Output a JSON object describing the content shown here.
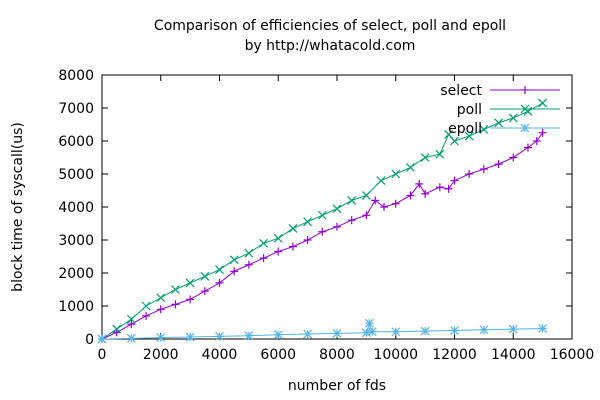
{
  "chart_data": {
    "type": "line",
    "title": "Comparison of efficiencies of select, poll and epoll",
    "subtitle": "by http://whatacold.com",
    "xlabel": "number of fds",
    "ylabel": "block time of syscall(us)",
    "xlim": [
      0,
      16000
    ],
    "ylim": [
      0,
      8000
    ],
    "xticks": [
      "0",
      "2000",
      "4000",
      "6000",
      "8000",
      "10000",
      "12000",
      "14000",
      "16000"
    ],
    "yticks": [
      "0",
      "1000",
      "2000",
      "3000",
      "4000",
      "5000",
      "6000",
      "7000",
      "8000"
    ],
    "grid": false,
    "legend_position": "top-right",
    "series": [
      {
        "name": "select",
        "color": "#9400d3",
        "marker": "plus",
        "x": [
          0,
          500,
          1000,
          1500,
          2000,
          2500,
          3000,
          3500,
          4000,
          4500,
          5000,
          5500,
          6000,
          6500,
          7000,
          7500,
          8000,
          8500,
          9000,
          9300,
          9600,
          10000,
          10500,
          10800,
          11000,
          11500,
          11800,
          12000,
          12500,
          13000,
          13500,
          14000,
          14500,
          14800,
          15000
        ],
        "y": [
          0,
          200,
          450,
          700,
          900,
          1050,
          1200,
          1450,
          1700,
          2050,
          2250,
          2450,
          2650,
          2800,
          3000,
          3250,
          3400,
          3600,
          3750,
          4200,
          4000,
          4100,
          4350,
          4700,
          4400,
          4600,
          4550,
          4800,
          5000,
          5150,
          5300,
          5500,
          5800,
          6000,
          6250
        ]
      },
      {
        "name": "poll",
        "color": "#009e73",
        "marker": "cross",
        "x": [
          0,
          500,
          1000,
          1500,
          2000,
          2500,
          3000,
          3500,
          4000,
          4500,
          5000,
          5500,
          6000,
          6500,
          7000,
          7500,
          8000,
          8500,
          9000,
          9500,
          10000,
          10500,
          11000,
          11500,
          11800,
          12000,
          12500,
          13000,
          13500,
          14000,
          14500,
          15000
        ],
        "y": [
          0,
          300,
          600,
          1000,
          1250,
          1500,
          1700,
          1900,
          2100,
          2400,
          2600,
          2900,
          3050,
          3350,
          3550,
          3750,
          3950,
          4200,
          4350,
          4800,
          5000,
          5200,
          5500,
          5600,
          6200,
          6000,
          6150,
          6350,
          6550,
          6700,
          6900,
          7150
        ]
      },
      {
        "name": "epoll",
        "color": "#56b4e9",
        "marker": "star",
        "x": [
          0,
          1000,
          2000,
          3000,
          4000,
          5000,
          6000,
          7000,
          8000,
          9000,
          9100,
          9200,
          10000,
          11000,
          12000,
          13000,
          14000,
          15000
        ],
        "y": [
          0,
          20,
          40,
          60,
          80,
          100,
          130,
          150,
          170,
          190,
          480,
          220,
          220,
          240,
          260,
          280,
          300,
          320
        ]
      }
    ]
  }
}
